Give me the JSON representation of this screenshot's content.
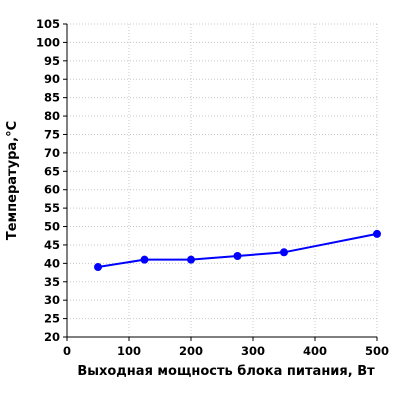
{
  "chart_data": {
    "type": "line",
    "title": "",
    "xlabel": "Выходная мощность блока питания, Вт",
    "ylabel": "Температура,°С",
    "xlim": [
      0,
      500
    ],
    "ylim": [
      20,
      105
    ],
    "x_ticks": [
      0,
      100,
      200,
      300,
      400,
      500
    ],
    "y_ticks": [
      20,
      25,
      30,
      35,
      40,
      45,
      50,
      55,
      60,
      65,
      70,
      75,
      80,
      85,
      90,
      95,
      100,
      105
    ],
    "grid": true,
    "legend": "none",
    "series": [
      {
        "color": "#0000ff",
        "x": [
          50,
          125,
          200,
          275,
          350,
          500
        ],
        "y": [
          39,
          41,
          41,
          42,
          43,
          48
        ]
      }
    ]
  }
}
